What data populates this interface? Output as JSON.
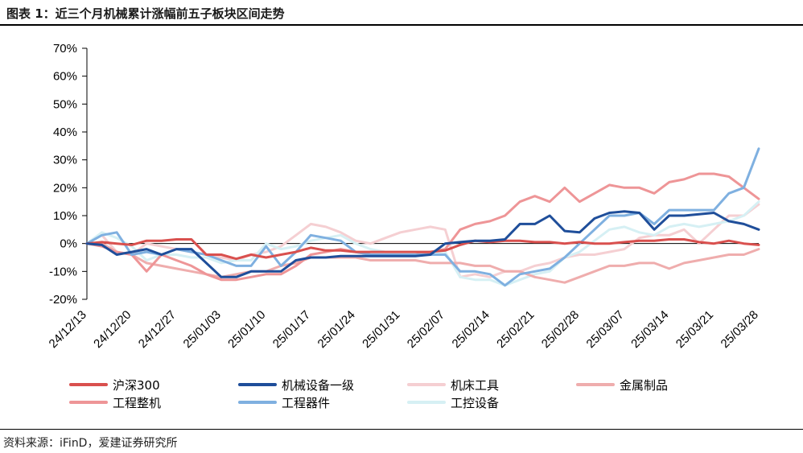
{
  "header": {
    "title": "图表 1：近三个月机械累计涨幅前五子板块区间走势"
  },
  "footer": {
    "source": "资料来源：iFinD，爱建证券研究所"
  },
  "chart_data": {
    "type": "line",
    "title": "图表 1：近三个月机械累计涨幅前五子板块区间走势",
    "xlabel": "",
    "ylabel": "",
    "ylim": [
      -20,
      70
    ],
    "yticks": [
      70,
      60,
      50,
      40,
      30,
      20,
      10,
      0,
      -10,
      -20
    ],
    "ytick_labels": [
      "70%",
      "60%",
      "50%",
      "40%",
      "30%",
      "20%",
      "10%",
      "0%",
      "-10%",
      "-20%"
    ],
    "x_tick_labels": [
      "24/12/13",
      "24/12/20",
      "24/12/27",
      "25/01/03",
      "25/01/10",
      "25/01/17",
      "25/01/24",
      "25/01/31",
      "25/02/07",
      "25/02/14",
      "25/02/21",
      "25/02/28",
      "25/03/07",
      "25/03/14",
      "25/03/21",
      "25/03/28"
    ],
    "legend_position": "bottom",
    "series": [
      {
        "name": "沪深300",
        "color": "#d9504e",
        "width": 3,
        "values": [
          0,
          0.5,
          0,
          -0.5,
          1,
          1,
          1.5,
          1.5,
          -4,
          -4,
          -5.5,
          -4,
          -5,
          -4,
          -3,
          -1.5,
          -2.5,
          -2.5,
          -3,
          -3,
          -3,
          -3,
          -3,
          -3,
          -2.5,
          -0.5,
          1,
          0.5,
          1,
          1,
          0.5,
          0.5,
          0,
          0.5,
          0,
          0,
          0.5,
          1,
          1,
          1.5,
          1.5,
          0.5,
          0,
          1,
          0,
          -0.5
        ]
      },
      {
        "name": "机械设备一级",
        "color": "#1f4e9a",
        "width": 3,
        "values": [
          0,
          -0.5,
          -4,
          -3,
          -2,
          -4,
          -2,
          -2,
          -7,
          -12,
          -12,
          -10,
          -10,
          -10,
          -6,
          -5,
          -5,
          -4.5,
          -4.5,
          -4.5,
          -4.5,
          -4.5,
          -4.5,
          -4,
          0,
          0.5,
          1,
          1,
          1.5,
          7,
          7,
          10,
          4.5,
          4,
          9,
          11,
          11.5,
          11,
          5,
          10,
          10,
          10.5,
          11,
          8,
          7,
          5
        ]
      },
      {
        "name": "机床工具",
        "color": "#f5cfd2",
        "width": 3,
        "values": [
          0,
          3,
          -3,
          -4,
          0,
          -1,
          -2,
          -3,
          -4,
          -5,
          -6,
          -4,
          -3,
          -1,
          3,
          7,
          6,
          4,
          1,
          0,
          2,
          4,
          5,
          6,
          5,
          -12,
          -11,
          -12,
          -10,
          -10,
          -8,
          -7,
          -5,
          -4,
          -4,
          -3,
          -2,
          2,
          3,
          3,
          5,
          0,
          5,
          10,
          10,
          14
        ]
      },
      {
        "name": "金属制品",
        "color": "#efadad",
        "width": 3,
        "values": [
          0,
          0,
          -3,
          -4,
          -7,
          -8,
          -9,
          -10,
          -11,
          -12,
          -11,
          -10,
          -10,
          -8,
          -7,
          -5,
          -5,
          -5,
          -5,
          -6,
          -6,
          -6,
          -6,
          -7,
          -7,
          -7,
          -8,
          -8,
          -10,
          -10,
          -12,
          -13,
          -14,
          -12,
          -10,
          -8,
          -8,
          -7,
          -7,
          -9,
          -7,
          -6,
          -5,
          -4,
          -4,
          -2
        ]
      },
      {
        "name": "工程整机",
        "color": "#ee9597",
        "width": 3,
        "values": [
          0,
          -1,
          -3,
          -4,
          -10,
          -4,
          -6,
          -8,
          -11,
          -13,
          -13,
          -12,
          -11,
          -11,
          -8,
          -4,
          -3,
          -2,
          -3,
          -4,
          -4,
          -4,
          -4,
          -3,
          -2,
          5,
          7,
          8,
          10,
          15,
          17,
          15,
          20,
          15,
          18,
          21,
          20,
          20,
          18,
          22,
          23,
          25,
          25,
          24,
          20,
          16
        ]
      },
      {
        "name": "工程器件",
        "color": "#7fb0e0",
        "width": 3,
        "values": [
          0,
          3,
          4,
          -4,
          -3,
          -4,
          -2,
          -3,
          -4,
          -6,
          -8,
          -8,
          -1,
          -8,
          -3,
          3,
          2,
          1,
          -3,
          -4,
          -4,
          -4,
          -4,
          -4,
          -4,
          -10,
          -10,
          -11,
          -15,
          -11,
          -10,
          -9,
          -5,
          0,
          5,
          10,
          10,
          11,
          7,
          12,
          12,
          12,
          12,
          18,
          20,
          34
        ]
      },
      {
        "name": "工控设备",
        "color": "#d6f0f4",
        "width": 3,
        "values": [
          0,
          4,
          2,
          -1,
          -6,
          -4,
          -4,
          -5,
          -5,
          -7,
          -6,
          -6,
          0,
          -2,
          -1,
          1,
          2,
          3,
          0,
          -2,
          -3,
          -3,
          -3,
          -3,
          -3,
          -12,
          -13,
          -13,
          -15,
          -13,
          -11,
          -10,
          -5,
          -3,
          1,
          5,
          6,
          4,
          3,
          6,
          7,
          6,
          7,
          8,
          10,
          15
        ]
      }
    ]
  }
}
